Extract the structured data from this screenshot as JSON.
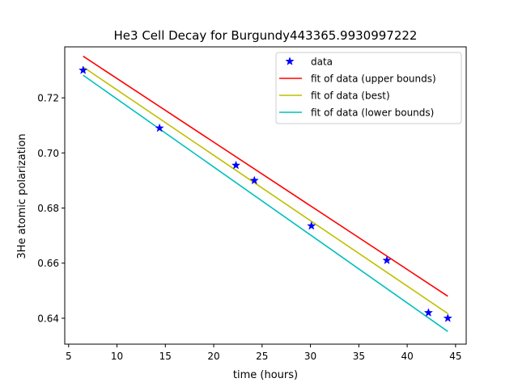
{
  "chart_data": {
    "type": "line",
    "title": "He3 Cell Decay for Burgundy443365.9930997222",
    "xlabel": "time (hours)",
    "ylabel": "3He atomic polarization",
    "xlim": [
      4.6,
      46.1
    ],
    "ylim": [
      0.6306,
      0.7385
    ],
    "x_ticks": [
      5,
      10,
      15,
      20,
      25,
      30,
      35,
      40,
      45
    ],
    "y_ticks": [
      0.64,
      0.66,
      0.68,
      0.7,
      0.72
    ],
    "x_tick_labels": [
      "5",
      "10",
      "15",
      "20",
      "25",
      "30",
      "35",
      "40",
      "45"
    ],
    "y_tick_labels": [
      "0.64",
      "0.66",
      "0.68",
      "0.70",
      "0.72"
    ],
    "grid": false,
    "legend_position": "upper-right",
    "legend": [
      "data",
      "fit of data (upper bounds)",
      "fit of data (best)",
      "fit of data (lower bounds)"
    ],
    "series": [
      {
        "name": "data",
        "kind": "scatter",
        "marker": "star",
        "color": "#0000ff",
        "x": [
          6.5,
          14.4,
          22.3,
          24.2,
          30.1,
          37.9,
          42.2,
          44.2
        ],
        "y": [
          0.73,
          0.709,
          0.6955,
          0.69,
          0.6735,
          0.661,
          0.642,
          0.64
        ]
      },
      {
        "name": "fit of data (upper bounds)",
        "kind": "line",
        "color": "#ff0000",
        "x": [
          6.5,
          44.2
        ],
        "y": [
          0.7351,
          0.648
        ]
      },
      {
        "name": "fit of data (best)",
        "kind": "line",
        "color": "#bfbf00",
        "x": [
          6.5,
          44.2
        ],
        "y": [
          0.7312,
          0.6417
        ]
      },
      {
        "name": "fit of data (lower bounds)",
        "kind": "line",
        "color": "#00bfbf",
        "x": [
          6.5,
          44.2
        ],
        "y": [
          0.7282,
          0.6352
        ]
      }
    ]
  }
}
